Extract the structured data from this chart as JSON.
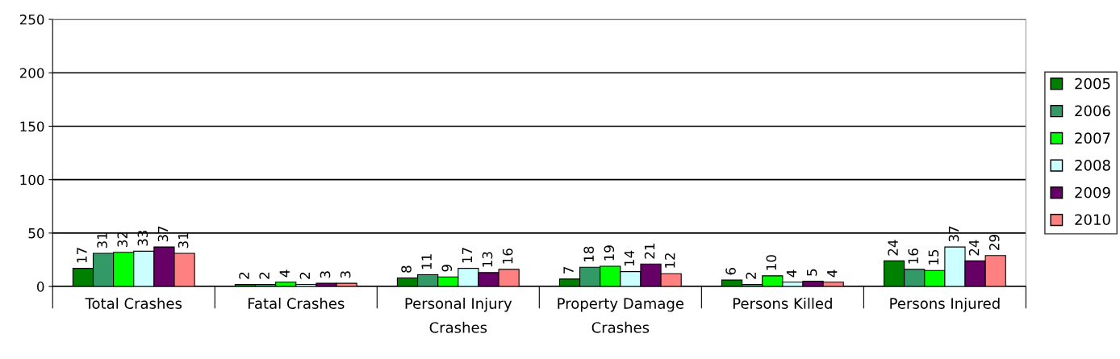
{
  "chart_data": {
    "type": "bar",
    "categories": [
      "Total Crashes",
      "Fatal Crashes",
      "Personal Injury Crashes",
      "Property Damage Crashes",
      "Persons Killed",
      "Persons Injured"
    ],
    "series": [
      {
        "name": "2005",
        "color": "#008000",
        "values": [
          17,
          2,
          8,
          7,
          6,
          24
        ]
      },
      {
        "name": "2006",
        "color": "#339966",
        "values": [
          31,
          2,
          11,
          18,
          2,
          16
        ]
      },
      {
        "name": "2007",
        "color": "#00ff00",
        "values": [
          32,
          4,
          9,
          19,
          10,
          15
        ]
      },
      {
        "name": "2008",
        "color": "#ccffff",
        "values": [
          33,
          2,
          17,
          14,
          4,
          37
        ]
      },
      {
        "name": "2009",
        "color": "#660066",
        "values": [
          37,
          3,
          13,
          21,
          5,
          24
        ]
      },
      {
        "name": "2010",
        "color": "#ff8080",
        "values": [
          31,
          3,
          16,
          12,
          4,
          29
        ]
      }
    ],
    "ylim": [
      0,
      250
    ],
    "yticks": [
      0,
      50,
      100,
      150,
      200,
      250
    ],
    "grid": "y",
    "legend": "right",
    "data_labels": true
  }
}
